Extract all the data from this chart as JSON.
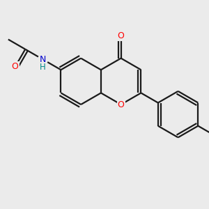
{
  "background_color": "#ebebeb",
  "bond_color": "#1a1a1a",
  "O_color": "#ff0000",
  "N_color": "#0000cc",
  "H_color": "#008888",
  "lw": 1.6,
  "figsize": [
    3.0,
    3.0
  ],
  "dpi": 100,
  "xlim": [
    -2.1,
    2.6
  ],
  "ylim": [
    -2.2,
    1.6
  ]
}
